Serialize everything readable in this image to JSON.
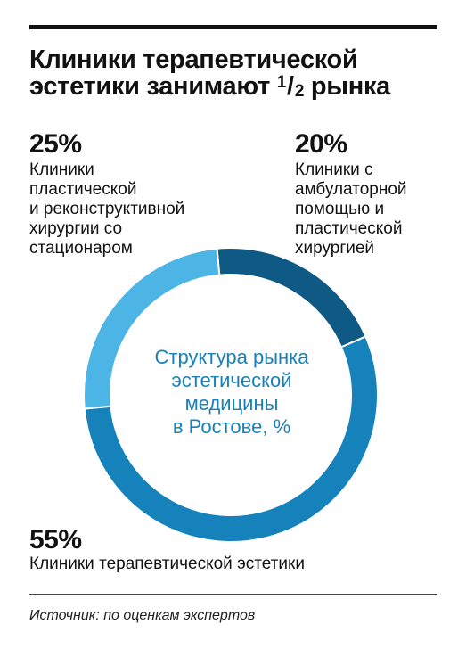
{
  "title": {
    "main": "Клиники терапевтической эстетики занимают",
    "fraction_numerator": "1",
    "fraction_denominator": "2",
    "tail": "рынка"
  },
  "labels": {
    "plastic": {
      "percent": "25%",
      "text": "Клиники\nпластической\nи реконструктивной\nхирургии со\nстационаром"
    },
    "ambulatory": {
      "percent": "20%",
      "text": "Клиники с\nамбулаторной\nпомощью и\nпластической\nхирургией"
    },
    "therapeutic": {
      "percent": "55%",
      "text": "Клиники терапевтической эстетики"
    }
  },
  "center_text": "Структура рынка\nэстетической\nмедицины\nв Ростове, %",
  "source": "Источник: по оценкам экспертов",
  "chart_data": {
    "type": "pie",
    "donut": true,
    "title": "Структура рынка эстетической медицины в Ростове, %",
    "categories": [
      "Клиники с амбулаторной помощью и пластической хирургией",
      "Клиники терапевтической эстетики",
      "Клиники пластической и реконструктивной хирургии со стационаром"
    ],
    "values": [
      20,
      55,
      25
    ],
    "colors": [
      "#0e5a85",
      "#1582bc",
      "#4cb5e6"
    ]
  }
}
